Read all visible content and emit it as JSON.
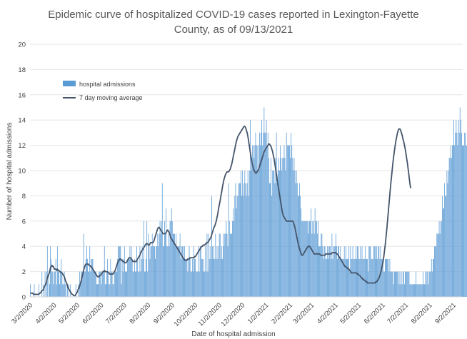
{
  "chart_data": {
    "type": "bar",
    "title_lines": [
      "Epidemic curve of hospitalized COVID-19 cases reported in Lexington-Fayette",
      "County, as of 09/13/2021"
    ],
    "xlabel": "Date of hospital admission",
    "ylabel": "Number of hospital admissions",
    "ylim": [
      0,
      20
    ],
    "yticks": [
      0,
      2,
      4,
      6,
      8,
      10,
      12,
      14,
      16,
      18,
      20
    ],
    "x_range": [
      "2020-03-02",
      "2021-09-13"
    ],
    "xtick_labels": [
      "3/2/2020",
      "4/2/2020",
      "5/2/2020",
      "6/2/2020",
      "7/2/2020",
      "8/2/2020",
      "9/2/2020",
      "10/2/2020",
      "11/2/2020",
      "12/2/2020",
      "1/2/2021",
      "2/2/2021",
      "3/2/2021",
      "4/2/2021",
      "5/2/2021",
      "6/2/2021",
      "7/2/2021",
      "8/2/2021",
      "9/2/2021"
    ],
    "xtick_dates": [
      "2020-03-02",
      "2020-04-02",
      "2020-05-02",
      "2020-06-02",
      "2020-07-02",
      "2020-08-02",
      "2020-09-02",
      "2020-10-02",
      "2020-11-02",
      "2020-12-02",
      "2021-01-02",
      "2021-02-02",
      "2021-03-02",
      "2021-04-02",
      "2021-05-02",
      "2021-06-02",
      "2021-07-02",
      "2021-08-02",
      "2021-09-02"
    ],
    "legend_position": "upper-left",
    "bar_color": "#5b9bd5",
    "line_color": "#44546a",
    "series": [
      {
        "name": "hospital admissions",
        "type": "bar",
        "values": [
          1,
          0,
          0,
          0,
          0,
          1,
          0,
          0,
          0,
          0,
          0,
          1,
          0,
          0,
          0,
          2,
          0,
          1,
          0,
          2,
          0,
          2,
          4,
          0,
          2,
          1,
          4,
          3,
          2,
          2,
          1,
          2,
          2,
          3,
          1,
          4,
          2,
          2,
          1,
          2,
          3,
          2,
          1,
          1,
          2,
          1,
          1,
          0,
          1,
          0,
          1,
          0,
          1,
          0,
          0,
          0,
          0,
          0,
          0,
          1,
          0,
          0,
          1,
          0,
          2,
          1,
          2,
          2,
          2,
          5,
          2,
          2,
          3,
          4,
          3,
          2,
          2,
          4,
          2,
          3,
          3,
          3,
          2,
          2,
          2,
          2,
          1,
          1,
          1,
          2,
          2,
          2,
          1,
          2,
          2,
          2,
          4,
          1,
          1,
          2,
          3,
          2,
          1,
          1,
          3,
          2,
          2,
          1,
          1,
          2,
          2,
          2,
          2,
          3,
          4,
          4,
          4,
          4,
          1,
          3,
          2,
          3,
          4,
          2,
          2,
          2,
          3,
          3,
          3,
          4,
          3,
          4,
          3,
          2,
          2,
          3,
          2,
          2,
          4,
          3,
          2,
          2,
          4,
          2,
          3,
          4,
          3,
          6,
          2,
          2,
          3,
          6,
          2,
          5,
          4,
          3,
          4,
          4,
          5,
          4,
          4,
          4,
          3,
          4,
          4,
          5,
          4,
          5,
          6,
          5,
          6,
          9,
          4,
          4,
          6,
          5,
          7,
          4,
          4,
          5,
          4,
          6,
          6,
          7,
          6,
          5,
          5,
          5,
          4,
          5,
          4,
          4,
          4,
          4,
          5,
          3,
          4,
          4,
          4,
          3,
          4,
          3,
          3,
          3,
          2,
          3,
          4,
          3,
          2,
          2,
          3,
          2,
          4,
          3,
          3,
          2,
          2,
          2,
          4,
          2,
          4,
          4,
          3,
          3,
          2,
          3,
          2,
          4,
          2,
          5,
          2,
          5,
          3,
          4,
          3,
          8,
          4,
          3,
          4,
          3,
          5,
          3,
          4,
          3,
          4,
          5,
          5,
          3,
          4,
          3,
          5,
          4,
          5,
          5,
          6,
          5,
          4,
          9,
          6,
          5,
          5,
          5,
          6,
          7,
          6,
          8,
          9,
          7,
          8,
          8,
          9,
          9,
          9,
          10,
          8,
          10,
          8,
          9,
          10,
          9,
          8,
          9,
          10,
          8,
          10,
          14,
          10,
          11,
          12,
          12,
          11,
          12,
          13,
          12,
          12,
          10,
          12,
          13,
          12,
          13,
          14,
          12,
          13,
          15,
          13,
          13,
          14,
          12,
          13,
          11,
          9,
          9,
          11,
          8,
          10,
          10,
          10,
          9,
          11,
          13,
          9,
          10,
          11,
          10,
          12,
          11,
          10,
          11,
          11,
          12,
          11,
          10,
          13,
          12,
          12,
          12,
          12,
          11,
          13,
          12,
          11,
          10,
          11,
          10,
          9,
          10,
          9,
          8,
          8,
          9,
          8,
          7,
          6,
          6,
          6,
          6,
          6,
          6,
          6,
          6,
          5,
          6,
          6,
          6,
          7,
          5,
          6,
          6,
          5,
          7,
          6,
          6,
          5,
          6,
          4,
          4,
          4,
          5,
          5,
          4,
          3,
          4,
          4,
          3,
          3,
          4,
          3,
          4,
          4,
          4,
          3,
          5,
          3,
          4,
          4,
          4,
          5,
          4,
          3,
          4,
          4,
          3,
          4,
          3,
          3,
          3,
          3,
          4,
          3,
          4,
          3,
          3,
          3,
          4,
          2,
          4,
          3,
          3,
          4,
          3,
          3,
          3,
          4,
          3,
          4,
          4,
          3,
          3,
          4,
          3,
          4,
          3,
          3,
          3,
          4,
          3,
          3,
          3,
          2,
          4,
          4,
          4,
          3,
          3,
          3,
          4,
          4,
          4,
          3,
          4,
          3,
          4,
          4,
          3,
          4,
          3,
          3,
          3,
          2,
          2,
          3,
          3,
          3,
          3,
          3,
          2,
          3,
          2,
          2,
          2,
          2,
          1,
          2,
          2,
          2,
          2,
          2,
          2,
          1,
          2,
          1,
          2,
          1,
          2,
          2,
          1,
          2,
          2,
          2,
          2,
          2,
          2,
          1,
          1,
          1,
          1,
          1,
          1,
          1,
          1,
          2,
          1,
          1,
          1,
          1,
          1,
          1,
          1,
          1,
          2,
          1,
          1,
          2,
          1,
          2,
          2,
          1,
          2,
          2,
          2,
          3,
          2,
          3,
          3,
          4,
          4,
          4,
          5,
          5,
          5,
          6,
          5,
          6,
          6,
          8,
          7,
          7,
          9,
          8,
          8,
          10,
          9,
          10,
          11,
          11,
          12,
          11,
          12,
          12,
          14,
          12,
          13,
          14,
          13,
          12,
          14,
          13,
          15,
          14,
          13,
          12,
          12,
          12,
          13,
          13,
          12,
          12,
          12,
          13,
          11,
          11,
          9,
          8
        ]
      },
      {
        "name": "7 day moving average",
        "type": "line",
        "values": [
          0.3,
          0.3,
          0.3,
          0.3,
          0.2,
          0.2,
          0.2,
          0.2,
          0.2,
          0.2,
          0.2,
          0.2,
          0.3,
          0.3,
          0.4,
          0.5,
          0.5,
          0.6,
          0.8,
          0.9,
          1.0,
          1.2,
          1.5,
          1.7,
          1.8,
          2.0,
          2.3,
          2.4,
          2.5,
          2.4,
          2.4,
          2.2,
          2.2,
          2.2,
          2.1,
          2.2,
          2.1,
          2.1,
          2.0,
          2.0,
          1.9,
          1.9,
          1.8,
          1.7,
          1.6,
          1.4,
          1.2,
          1.1,
          0.9,
          0.7,
          0.6,
          0.5,
          0.4,
          0.3,
          0.2,
          0.2,
          0.1,
          0.1,
          0.1,
          0.2,
          0.3,
          0.4,
          0.6,
          0.7,
          0.9,
          1.1,
          1.3,
          1.6,
          1.8,
          2.1,
          2.3,
          2.5,
          2.6,
          2.6,
          2.6,
          2.6,
          2.5,
          2.5,
          2.4,
          2.4,
          2.3,
          2.2,
          2.1,
          2.0,
          1.9,
          1.8,
          1.7,
          1.6,
          1.6,
          1.6,
          1.7,
          1.7,
          1.8,
          1.9,
          2.0,
          2.0,
          2.1,
          2.0,
          2.0,
          2.0,
          2.0,
          1.9,
          1.9,
          1.8,
          1.8,
          1.8,
          1.8,
          1.8,
          1.9,
          2.0,
          2.1,
          2.3,
          2.5,
          2.7,
          2.8,
          2.9,
          3.0,
          3.0,
          2.9,
          2.9,
          2.8,
          2.8,
          2.7,
          2.7,
          2.7,
          2.8,
          2.9,
          3.0,
          3.1,
          3.1,
          3.1,
          3.0,
          2.9,
          2.8,
          2.8,
          2.8,
          2.8,
          2.8,
          2.9,
          3.0,
          3.1,
          3.2,
          3.3,
          3.5,
          3.6,
          3.7,
          3.8,
          3.9,
          4.0,
          4.1,
          4.2,
          4.2,
          4.2,
          4.1,
          4.1,
          4.2,
          4.3,
          4.3,
          4.3,
          4.3,
          4.4,
          4.6,
          4.8,
          5.0,
          5.2,
          5.4,
          5.5,
          5.5,
          5.4,
          5.3,
          5.2,
          5.1,
          5.0,
          5.0,
          5.0,
          5.0,
          5.1,
          5.2,
          5.3,
          5.2,
          5.1,
          4.9,
          4.7,
          4.6,
          4.5,
          4.4,
          4.3,
          4.2,
          4.1,
          4.0,
          3.9,
          3.8,
          3.7,
          3.6,
          3.5,
          3.4,
          3.3,
          3.2,
          3.1,
          3.0,
          2.9,
          2.9,
          2.9,
          2.9,
          3.0,
          3.0,
          3.0,
          3.1,
          3.1,
          3.1,
          3.1,
          3.1,
          3.1,
          3.2,
          3.2,
          3.3,
          3.4,
          3.5,
          3.6,
          3.7,
          3.8,
          3.9,
          4.0,
          4.0,
          4.1,
          4.1,
          4.1,
          4.2,
          4.2,
          4.3,
          4.3,
          4.4,
          4.5,
          4.6,
          4.7,
          4.9,
          5.1,
          5.3,
          5.5,
          5.6,
          5.8,
          6.0,
          6.3,
          6.6,
          7.0,
          7.3,
          7.6,
          8.0,
          8.3,
          8.7,
          9.0,
          9.3,
          9.5,
          9.7,
          9.8,
          9.9,
          9.9,
          9.9,
          10.0,
          10.1,
          10.3,
          10.5,
          10.8,
          11.1,
          11.4,
          11.7,
          12.0,
          12.3,
          12.5,
          12.7,
          12.8,
          12.9,
          13.0,
          13.1,
          13.2,
          13.3,
          13.4,
          13.5,
          13.5,
          13.4,
          13.2,
          13.0,
          12.7,
          12.3,
          11.9,
          11.5,
          11.1,
          10.7,
          10.4,
          10.2,
          10.0,
          9.9,
          9.8,
          9.8,
          9.9,
          10.0,
          10.1,
          10.3,
          10.5,
          10.7,
          10.9,
          11.1,
          11.3,
          11.5,
          11.6,
          11.7,
          11.8,
          11.9,
          12.0,
          12.1,
          12.1,
          12.0,
          11.9,
          11.7,
          11.5,
          11.2,
          10.9,
          10.5,
          10.1,
          9.7,
          9.3,
          8.9,
          8.5,
          8.1,
          7.7,
          7.3,
          6.9,
          6.6,
          6.4,
          6.3,
          6.2,
          6.1,
          6.0,
          6.0,
          6.0,
          6.0,
          6.0,
          6.0,
          6.0,
          6.0,
          6.0,
          5.9,
          5.7,
          5.5,
          5.2,
          4.9,
          4.6,
          4.3,
          4.0,
          3.8,
          3.6,
          3.4,
          3.3,
          3.3,
          3.4,
          3.5,
          3.6,
          3.7,
          3.8,
          3.9,
          4.0,
          4.0,
          4.0,
          3.9,
          3.8,
          3.7,
          3.6,
          3.5,
          3.4,
          3.4,
          3.4,
          3.4,
          3.4,
          3.4,
          3.4,
          3.4,
          3.3,
          3.3,
          3.3,
          3.3,
          3.3,
          3.3,
          3.3,
          3.4,
          3.4,
          3.4,
          3.4,
          3.4,
          3.4,
          3.4,
          3.4,
          3.5,
          3.5,
          3.5,
          3.5,
          3.5,
          3.5,
          3.4,
          3.4,
          3.3,
          3.2,
          3.1,
          3.0,
          2.9,
          2.8,
          2.7,
          2.6,
          2.5,
          2.4,
          2.4,
          2.3,
          2.3,
          2.2,
          2.2,
          2.1,
          2.0,
          1.9,
          1.9,
          1.9,
          1.9,
          1.9,
          1.9,
          1.9,
          1.9,
          1.8,
          1.8,
          1.7,
          1.7,
          1.6,
          1.5,
          1.5,
          1.4,
          1.4,
          1.3,
          1.3,
          1.2,
          1.2,
          1.1,
          1.1,
          1.1,
          1.1,
          1.1,
          1.1,
          1.1,
          1.1,
          1.1,
          1.1,
          1.1,
          1.2,
          1.2,
          1.3,
          1.4,
          1.5,
          1.7,
          1.9,
          2.1,
          2.4,
          2.7,
          3.1,
          3.6,
          4.1,
          4.7,
          5.3,
          6.0,
          6.7,
          7.4,
          8.1,
          8.8,
          9.4,
          10.0,
          10.6,
          11.1,
          11.6,
          12.0,
          12.4,
          12.7,
          13.0,
          13.2,
          13.3,
          13.3,
          13.2,
          13.0,
          12.8,
          12.5,
          12.3,
          12.0,
          11.7,
          11.3,
          10.9,
          10.5,
          10.0,
          9.5,
          9.0,
          8.6
        ],
        "first_value_index": 0
      }
    ]
  }
}
